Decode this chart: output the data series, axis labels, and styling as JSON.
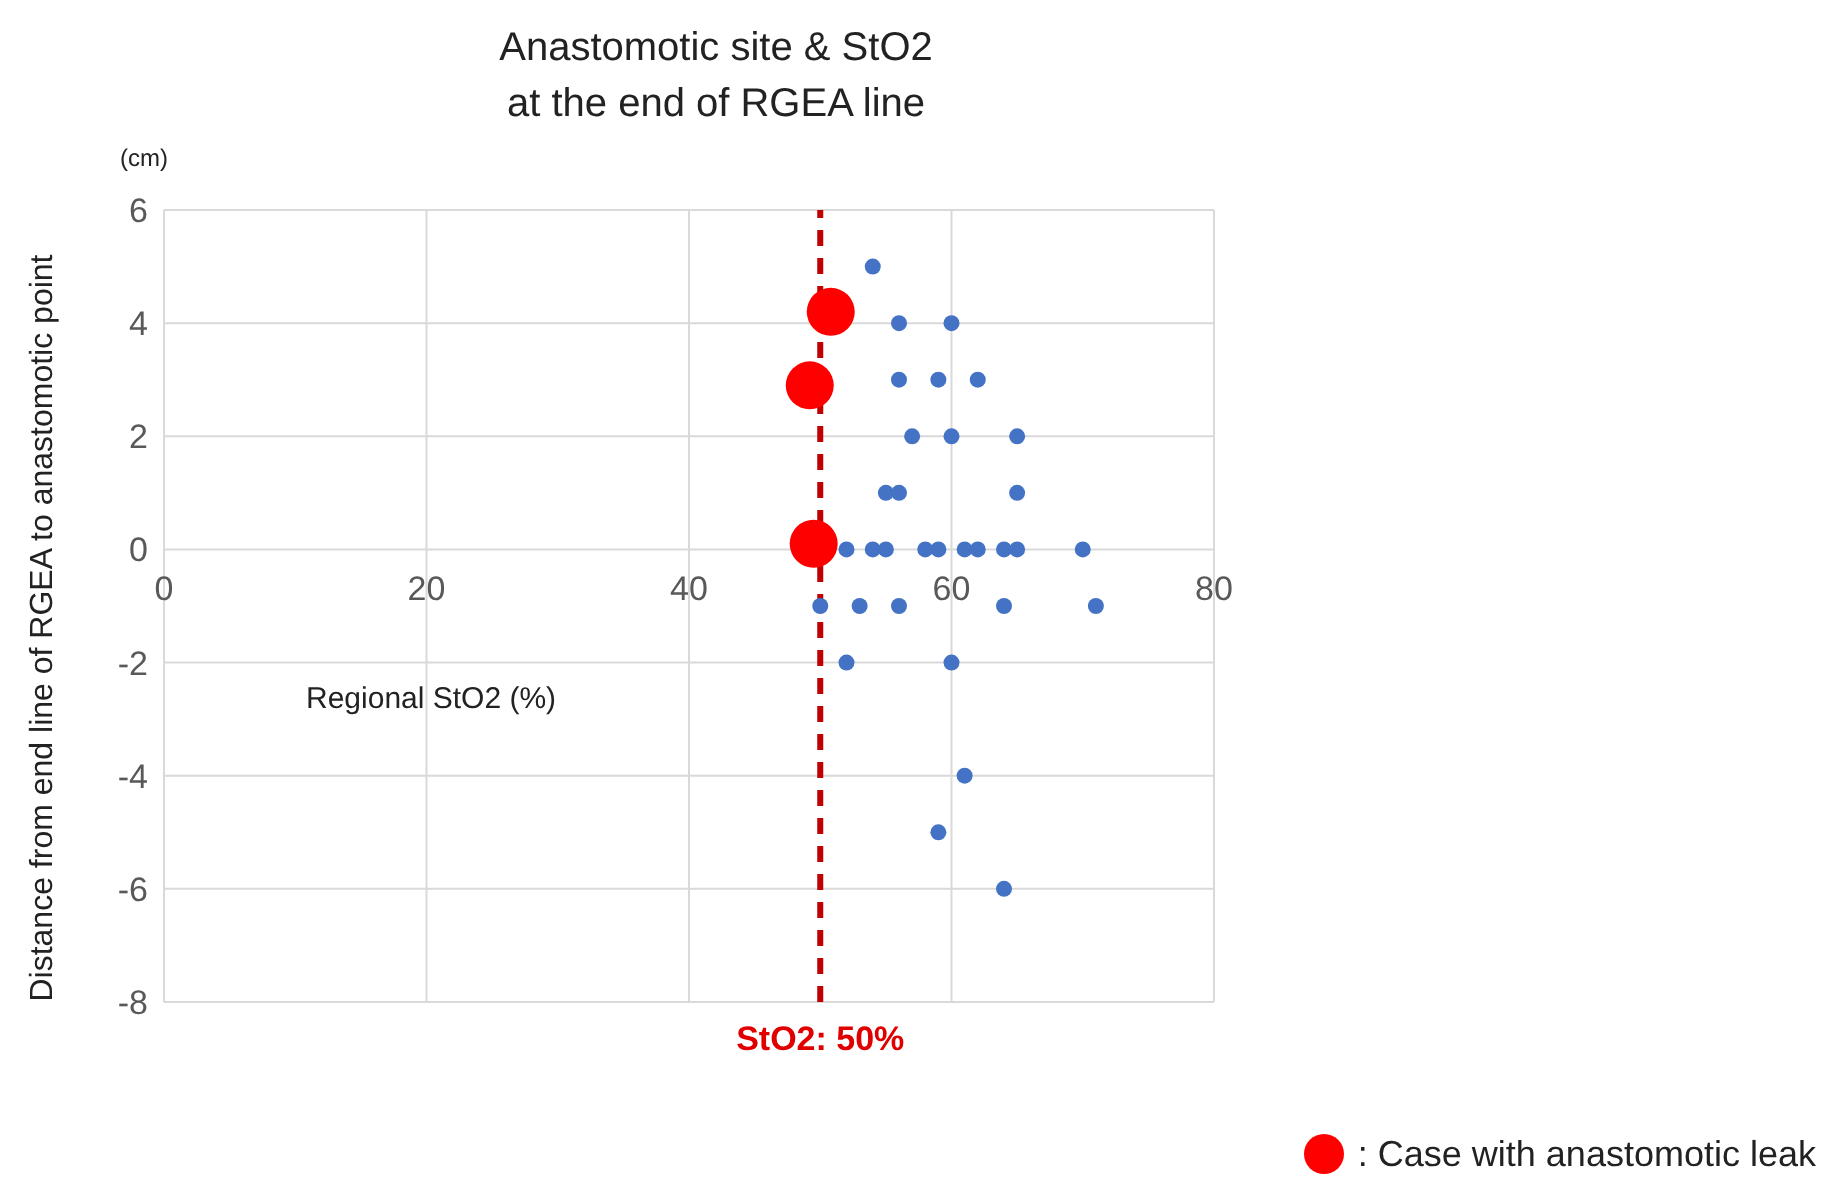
{
  "chart_data": {
    "type": "scatter",
    "title": "Anastomotic site & StO2\nat the end of RGEA line",
    "xlabel": "Regional StO2 (%)",
    "ylabel": "Distance from end line of RGEA to anastomotic point",
    "annotations": [
      "(cm)"
    ],
    "xlim": [
      0,
      80
    ],
    "xticks": [
      0,
      20,
      40,
      60,
      80
    ],
    "ylim": [
      -8,
      6
    ],
    "yticks": [
      -8,
      -6,
      -4,
      -2,
      0,
      2,
      4,
      6
    ],
    "grid": true,
    "legend": "bottom right",
    "series": [
      {
        "color": "#4472c4",
        "x": [
          54,
          56,
          60,
          56,
          59,
          62,
          57,
          60,
          65,
          55,
          56,
          65,
          52,
          54,
          55,
          58,
          59,
          61,
          62,
          64,
          65,
          70,
          50,
          53,
          56,
          64,
          71,
          52,
          60,
          61,
          59,
          64
        ],
        "values": [
          5,
          4,
          4,
          3,
          3,
          3,
          2,
          2,
          2,
          1,
          1,
          1,
          0,
          0,
          0,
          0,
          0,
          0,
          0,
          0,
          0,
          0,
          -1,
          -1,
          -1,
          -1,
          -1,
          -2,
          -2,
          -4,
          -5,
          -6
        ]
      },
      {
        "name": ": Case with anastomotic leak",
        "color": "#ff0000",
        "x": [
          50.8,
          49.2,
          49.5
        ],
        "values": [
          4.2,
          2.9,
          0.1
        ]
      }
    ],
    "ref_lines": [
      {
        "axis": "x",
        "value": 50,
        "label": "StO2: 50%",
        "color": "#c00000",
        "line_style": "dashed"
      }
    ]
  }
}
